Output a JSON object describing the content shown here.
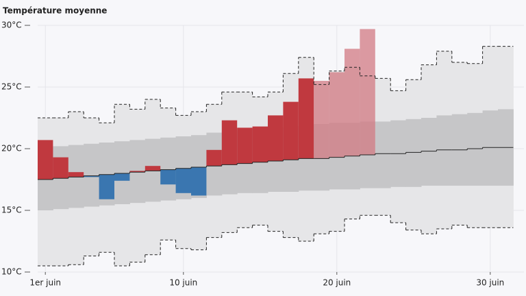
{
  "chart_data": {
    "type": "step-band",
    "title": "Température moyenne",
    "x": [
      1,
      2,
      3,
      4,
      5,
      6,
      7,
      8,
      9,
      10,
      11,
      12,
      13,
      14,
      15,
      16,
      17,
      18,
      19,
      20,
      21,
      22,
      23,
      24,
      25,
      26,
      27,
      28,
      29,
      30,
      31
    ],
    "xlim": [
      0.5,
      31.5
    ],
    "xticks": [
      {
        "value": 1,
        "label": "1er juin"
      },
      {
        "value": 10,
        "label": "10 juin"
      },
      {
        "value": 20,
        "label": "20 juin"
      },
      {
        "value": 30,
        "label": "30 juin"
      }
    ],
    "ylim": [
      10,
      30
    ],
    "yticks": [
      {
        "value": 10,
        "label": "10°C"
      },
      {
        "value": 15,
        "label": "15°C"
      },
      {
        "value": 20,
        "label": "20°C"
      },
      {
        "value": 25,
        "label": "25°C"
      },
      {
        "value": 30,
        "label": "30°C"
      }
    ],
    "grid": true,
    "normal": {
      "color": "#222222",
      "values": [
        17.5,
        17.6,
        17.7,
        17.8,
        17.9,
        18.0,
        18.1,
        18.2,
        18.3,
        18.4,
        18.5,
        18.6,
        18.7,
        18.8,
        18.9,
        19.0,
        19.1,
        19.2,
        19.2,
        19.3,
        19.4,
        19.5,
        19.6,
        19.6,
        19.7,
        19.8,
        19.9,
        19.9,
        20.0,
        20.1,
        20.1
      ]
    },
    "inner_band": {
      "color": "#c6c6c8",
      "upper": [
        20.1,
        20.2,
        20.3,
        20.4,
        20.5,
        20.6,
        20.7,
        20.8,
        20.9,
        21.0,
        21.1,
        21.3,
        21.4,
        21.5,
        21.6,
        21.7,
        21.8,
        21.9,
        22.0,
        22.1,
        22.1,
        22.2,
        22.2,
        22.3,
        22.4,
        22.5,
        22.7,
        22.8,
        22.9,
        23.1,
        23.2
      ],
      "lower": [
        15.0,
        15.1,
        15.2,
        15.3,
        15.4,
        15.5,
        15.6,
        15.7,
        15.8,
        15.9,
        16.0,
        16.2,
        16.3,
        16.4,
        16.4,
        16.5,
        16.5,
        16.6,
        16.6,
        16.7,
        16.7,
        16.8,
        16.8,
        16.9,
        16.9,
        17.0,
        17.0,
        17.0,
        17.0,
        17.0,
        17.0
      ]
    },
    "records": {
      "color": "#e6e6e8",
      "line_color": "#222222",
      "max": [
        22.5,
        22.5,
        23.0,
        22.5,
        22.1,
        23.6,
        23.2,
        24.0,
        23.3,
        22.7,
        23.0,
        23.6,
        24.6,
        24.6,
        24.2,
        24.6,
        26.1,
        27.4,
        25.2,
        26.3,
        26.6,
        25.9,
        25.7,
        24.7,
        25.6,
        26.8,
        27.9,
        27.0,
        26.9,
        28.3,
        28.3
      ],
      "min": [
        10.5,
        10.5,
        10.6,
        11.3,
        11.6,
        10.5,
        10.8,
        11.4,
        12.6,
        11.9,
        11.8,
        12.8,
        13.2,
        13.6,
        13.8,
        13.3,
        12.8,
        12.5,
        13.1,
        13.3,
        14.3,
        14.6,
        14.6,
        14.0,
        13.4,
        13.1,
        13.5,
        13.8,
        13.6,
        13.6,
        13.6
      ]
    },
    "observed": {
      "warm_color": "#c0393f",
      "cold_color": "#3a76b0",
      "values": [
        20.7,
        19.3,
        18.1,
        17.7,
        15.9,
        17.4,
        18.2,
        18.6,
        17.1,
        16.4,
        16.2,
        19.9,
        22.3,
        21.7,
        21.8,
        22.7,
        23.8,
        25.7,
        null,
        null,
        null,
        null,
        null,
        null,
        null,
        null,
        null,
        null,
        null,
        null,
        null
      ]
    },
    "forecast": {
      "warm_color": "#d27a83",
      "cold_color": "#7fa6cf",
      "values": [
        null,
        null,
        null,
        null,
        null,
        null,
        null,
        null,
        null,
        null,
        null,
        null,
        null,
        null,
        null,
        null,
        null,
        null,
        25.5,
        26.2,
        28.1,
        29.7,
        null,
        null,
        null,
        null,
        null,
        null,
        null,
        null,
        null
      ]
    }
  }
}
